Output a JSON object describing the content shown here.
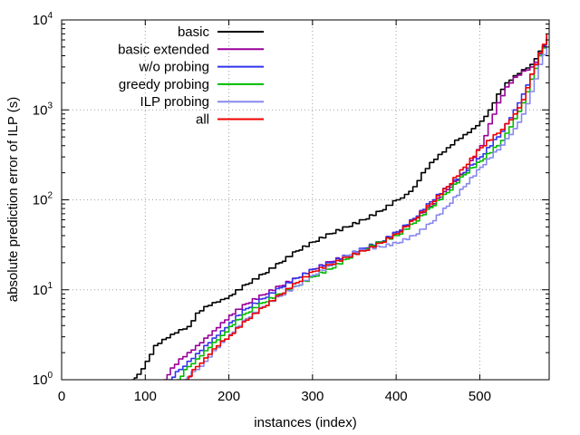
{
  "chart_data": {
    "type": "line",
    "title": "",
    "xlabel": "instances (index)",
    "ylabel": "absolute prediction error of ILP (s)",
    "xlim": [
      0,
      583
    ],
    "ylim": [
      1,
      10000
    ],
    "yscale": "log",
    "grid": true,
    "legend_position": "top-left-inside",
    "x_ticks": [
      {
        "value": 0,
        "label": "0"
      },
      {
        "value": 100,
        "label": "100"
      },
      {
        "value": 200,
        "label": "200"
      },
      {
        "value": 300,
        "label": "300"
      },
      {
        "value": 400,
        "label": "400"
      },
      {
        "value": 500,
        "label": "500"
      }
    ],
    "y_ticks": [
      {
        "value": 1,
        "base": "10",
        "exp": "0"
      },
      {
        "value": 10,
        "base": "10",
        "exp": "1"
      },
      {
        "value": 100,
        "base": "10",
        "exp": "2"
      },
      {
        "value": 1000,
        "base": "10",
        "exp": "3"
      },
      {
        "value": 10000,
        "base": "10",
        "exp": "4"
      }
    ],
    "series": [
      {
        "name": "basic",
        "color": "#000000",
        "x": [
          84,
          90,
          100,
          110,
          120,
          130,
          140,
          150,
          160,
          170,
          180,
          190,
          200,
          220,
          240,
          260,
          280,
          300,
          320,
          340,
          360,
          380,
          400,
          410,
          420,
          430,
          440,
          450,
          460,
          470,
          480,
          490,
          500,
          510,
          520,
          530,
          540,
          550,
          560,
          570,
          580
        ],
        "y": [
          1.0,
          1.15,
          1.6,
          2.4,
          2.8,
          3.2,
          3.6,
          3.9,
          5.5,
          6.5,
          7.2,
          7.8,
          8.6,
          11.5,
          15,
          20,
          27,
          34,
          42,
          50,
          60,
          75,
          100,
          115,
          140,
          200,
          260,
          320,
          380,
          460,
          530,
          620,
          750,
          1000,
          1500,
          2000,
          2400,
          2800,
          3200,
          4500,
          6000
        ]
      },
      {
        "name": "basic extended",
        "color": "#990099",
        "x": [
          122,
          130,
          140,
          150,
          160,
          170,
          180,
          190,
          200,
          220,
          240,
          260,
          280,
          300,
          320,
          340,
          360,
          380,
          400,
          420,
          440,
          460,
          480,
          500,
          510,
          520,
          530,
          540,
          550,
          560,
          570,
          580
        ],
        "y": [
          1.0,
          1.35,
          1.7,
          2.0,
          2.4,
          2.9,
          3.5,
          4.3,
          5.2,
          7,
          8.8,
          11,
          13.5,
          17,
          20.5,
          24,
          28,
          34,
          44,
          60,
          85,
          130,
          200,
          400,
          700,
          1200,
          1800,
          2300,
          2700,
          3000,
          4000,
          6500
        ]
      },
      {
        "name": "w/o probing",
        "color": "#3333ee",
        "x": [
          128,
          140,
          150,
          160,
          170,
          180,
          190,
          200,
          220,
          240,
          260,
          280,
          300,
          320,
          340,
          360,
          380,
          400,
          420,
          440,
          460,
          480,
          500,
          520,
          530,
          540,
          550,
          560,
          570,
          580
        ],
        "y": [
          1.0,
          1.3,
          1.6,
          1.95,
          2.4,
          2.9,
          3.5,
          4.3,
          6.2,
          8,
          10.5,
          13.5,
          17,
          20,
          24,
          29,
          34,
          44,
          62,
          95,
          140,
          200,
          300,
          500,
          700,
          1000,
          1500,
          2500,
          4200,
          6800
        ]
      },
      {
        "name": "greedy probing",
        "color": "#00bb00",
        "x": [
          138,
          150,
          160,
          170,
          180,
          190,
          200,
          220,
          240,
          260,
          280,
          300,
          320,
          340,
          360,
          380,
          400,
          420,
          440,
          460,
          480,
          500,
          520,
          530,
          540,
          550,
          560,
          570,
          580
        ],
        "y": [
          1.0,
          1.4,
          1.7,
          2.1,
          2.6,
          3.1,
          3.9,
          5.5,
          7.2,
          9,
          11,
          14,
          17,
          22,
          28,
          34,
          40,
          55,
          82,
          120,
          190,
          270,
          400,
          550,
          800,
          1200,
          2200,
          4000,
          6200
        ]
      },
      {
        "name": "ILP probing",
        "color": "#8888ee",
        "x": [
          145,
          160,
          170,
          180,
          190,
          200,
          220,
          240,
          260,
          280,
          300,
          320,
          340,
          360,
          380,
          400,
          420,
          440,
          460,
          480,
          500,
          520,
          530,
          540,
          550,
          560,
          570,
          580
        ],
        "y": [
          1.0,
          1.3,
          1.6,
          2.1,
          2.6,
          3.2,
          4.8,
          6.5,
          8.5,
          11,
          14.5,
          18.5,
          24,
          28,
          30,
          33,
          40,
          55,
          85,
          140,
          230,
          360,
          480,
          620,
          900,
          1600,
          3200,
          5500
        ]
      },
      {
        "name": "all",
        "color": "#ee0000",
        "x": [
          148,
          160,
          170,
          180,
          190,
          200,
          220,
          240,
          260,
          280,
          300,
          320,
          340,
          360,
          380,
          400,
          420,
          440,
          460,
          480,
          500,
          520,
          530,
          540,
          550,
          560,
          570,
          580
        ],
        "y": [
          1.0,
          1.4,
          1.75,
          2.2,
          2.7,
          3.1,
          4.6,
          6.4,
          8.8,
          12,
          16,
          19,
          23,
          27,
          33,
          42,
          60,
          90,
          140,
          230,
          380,
          550,
          700,
          900,
          1300,
          2500,
          4300,
          7000
        ]
      }
    ]
  }
}
